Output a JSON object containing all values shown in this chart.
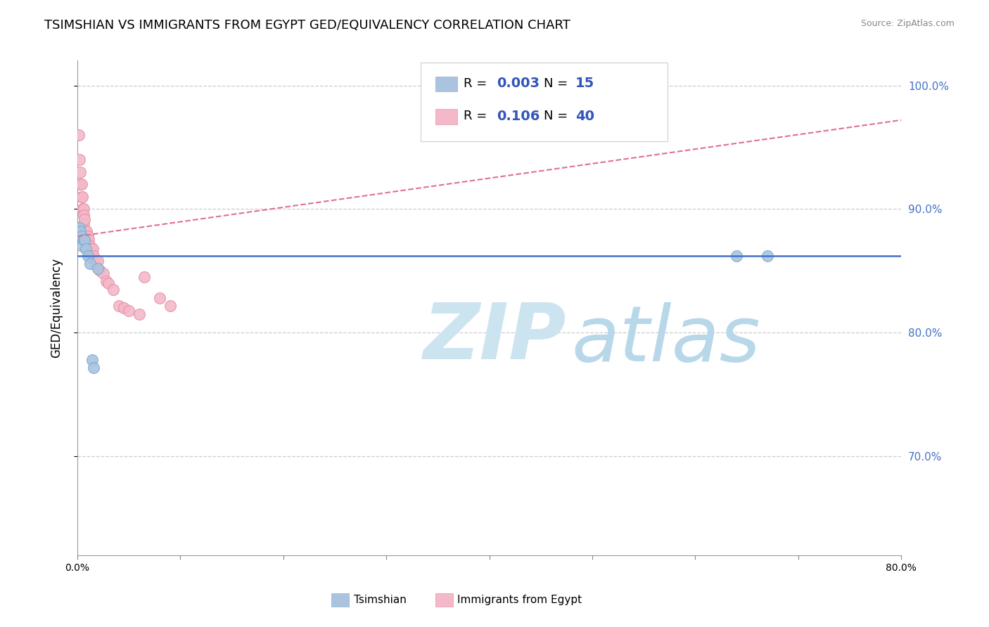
{
  "title": "TSIMSHIAN VS IMMIGRANTS FROM EGYPT GED/EQUIVALENCY CORRELATION CHART",
  "source_text": "Source: ZipAtlas.com",
  "ylabel": "GED/Equivalency",
  "xlim": [
    0.0,
    0.8
  ],
  "ylim": [
    0.62,
    1.02
  ],
  "ytick_labels_right": [
    "70.0%",
    "80.0%",
    "90.0%",
    "100.0%"
  ],
  "ytick_vals_right": [
    0.7,
    0.8,
    0.9,
    1.0
  ],
  "series1_label": "Tsimshian",
  "series1_R": "0.003",
  "series1_N": "15",
  "series1_color": "#aac4e0",
  "series1_edge_color": "#7aaad0",
  "series1_line_color": "#4472c4",
  "series2_label": "Immigrants from Egypt",
  "series2_R": "0.106",
  "series2_N": "40",
  "series2_color": "#f4b8c8",
  "series2_edge_color": "#e090a8",
  "series2_line_color": "#e07090",
  "tsimshian_x": [
    0.001,
    0.002,
    0.003,
    0.004,
    0.005,
    0.006,
    0.007,
    0.008,
    0.01,
    0.012,
    0.014,
    0.016,
    0.02,
    0.64,
    0.67
  ],
  "tsimshian_y": [
    0.88,
    0.885,
    0.882,
    0.878,
    0.87,
    0.875,
    0.875,
    0.868,
    0.862,
    0.856,
    0.778,
    0.772,
    0.852,
    0.862,
    0.862
  ],
  "egypt_x": [
    0.001,
    0.002,
    0.003,
    0.003,
    0.004,
    0.004,
    0.005,
    0.005,
    0.006,
    0.006,
    0.006,
    0.007,
    0.007,
    0.008,
    0.009,
    0.009,
    0.01,
    0.01,
    0.011,
    0.012,
    0.013,
    0.014,
    0.015,
    0.015,
    0.016,
    0.017,
    0.018,
    0.02,
    0.022,
    0.025,
    0.028,
    0.03,
    0.035,
    0.04,
    0.045,
    0.05,
    0.06,
    0.065,
    0.08,
    0.09
  ],
  "egypt_y": [
    0.96,
    0.94,
    0.93,
    0.92,
    0.92,
    0.91,
    0.91,
    0.9,
    0.9,
    0.895,
    0.888,
    0.892,
    0.882,
    0.882,
    0.882,
    0.875,
    0.878,
    0.872,
    0.875,
    0.87,
    0.868,
    0.862,
    0.868,
    0.86,
    0.862,
    0.858,
    0.855,
    0.858,
    0.85,
    0.848,
    0.842,
    0.84,
    0.835,
    0.822,
    0.82,
    0.818,
    0.815,
    0.845,
    0.828,
    0.822
  ],
  "bg_color": "#ffffff",
  "grid_color": "#cccccc",
  "watermark_color": "#cce4f0",
  "legend_R_color": "#3355bb",
  "legend_N_color": "#3355bb",
  "tsimshian_line_y": 0.862,
  "egypt_line_x0": 0.0,
  "egypt_line_x1": 0.8,
  "egypt_line_y0": 0.878,
  "egypt_line_y1": 0.972
}
